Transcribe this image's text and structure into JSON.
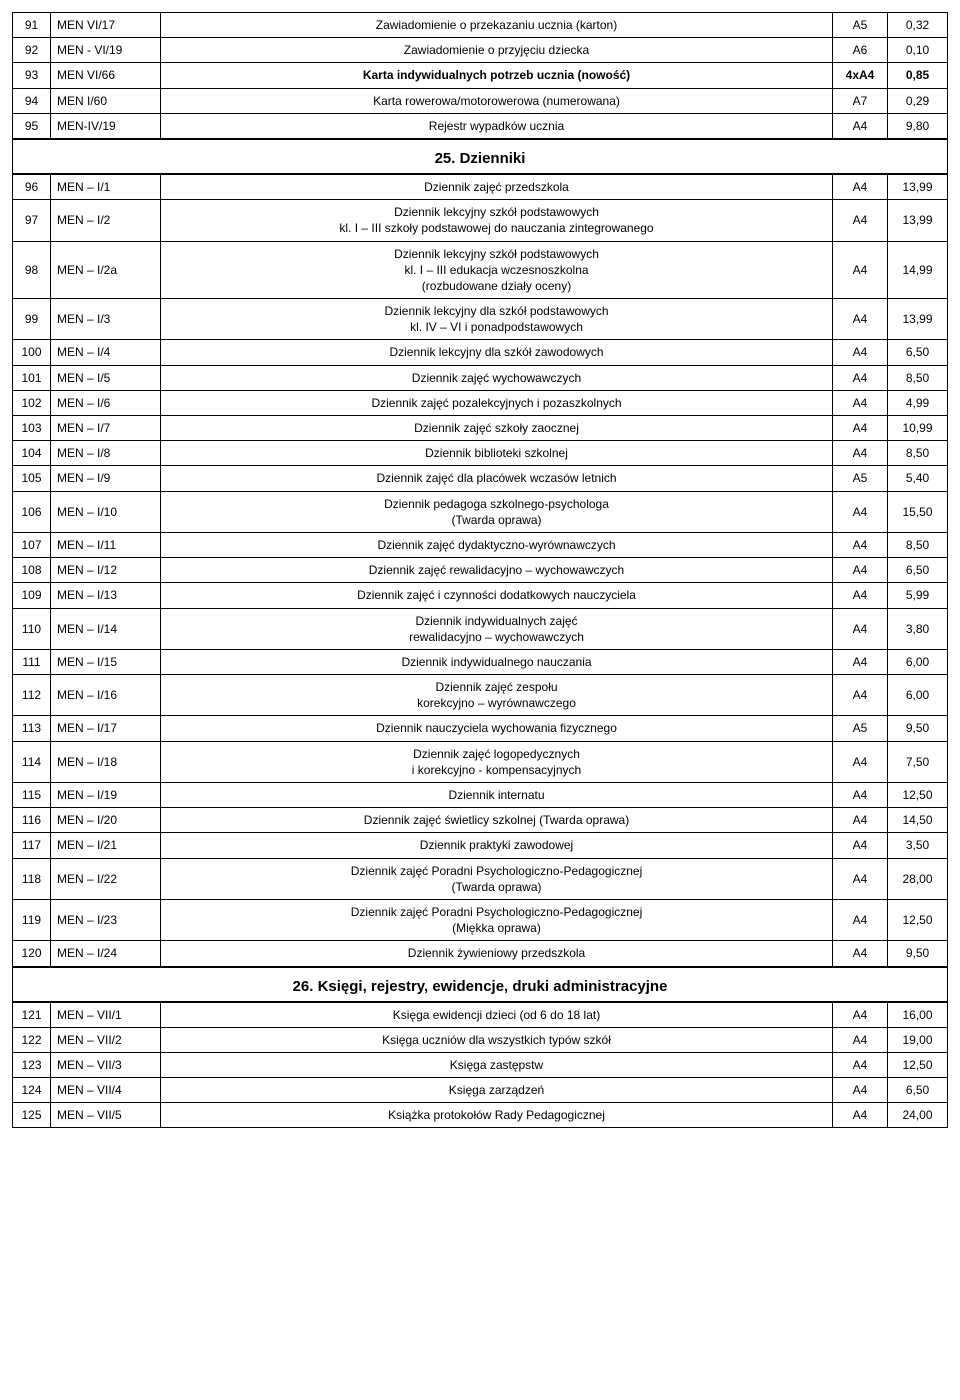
{
  "sections": [
    {
      "heading": null,
      "rows": [
        {
          "no": "91",
          "code": "MEN VI/17",
          "desc": "Zawiadomienie o przekazaniu ucznia (karton)",
          "fmt": "A5",
          "price": "0,32",
          "bold": false
        },
        {
          "no": "92",
          "code": "MEN -  VI/19",
          "desc": "Zawiadomienie o przyjęciu dziecka",
          "fmt": "A6",
          "price": "0,10",
          "bold": false
        },
        {
          "no": "93",
          "code": "MEN VI/66",
          "desc": "Karta indywidualnych potrzeb ucznia (nowość)",
          "fmt": "4xA4",
          "price": "0,85",
          "bold": true
        },
        {
          "no": "94",
          "code": "MEN I/60",
          "desc": "Karta rowerowa/motorowerowa (numerowana)",
          "fmt": "A7",
          "price": "0,29",
          "bold": false
        },
        {
          "no": "95",
          "code": "MEN-IV/19",
          "desc": "Rejestr wypadków ucznia",
          "fmt": "A4",
          "price": "9,80",
          "bold": false
        }
      ]
    },
    {
      "heading": "25. Dzienniki",
      "rows": [
        {
          "no": "96",
          "code": "MEN – I/1",
          "desc": "Dziennik zajęć przedszkola",
          "fmt": "A4",
          "price": "13,99",
          "bold": false
        },
        {
          "no": "97",
          "code": "MEN – I/2",
          "desc": "Dziennik lekcyjny szkół podstawowych\nkl. I – III szkoły podstawowej do nauczania zintegrowanego",
          "fmt": "A4",
          "price": "13,99",
          "bold": false
        },
        {
          "no": "98",
          "code": "MEN – I/2a",
          "desc": "Dziennik lekcyjny szkół podstawowych\nkl. I – III edukacja wczesnoszkolna\n(rozbudowane działy oceny)",
          "fmt": "A4",
          "price": "14,99",
          "bold": false
        },
        {
          "no": "99",
          "code": "MEN – I/3",
          "desc": "Dziennik lekcyjny dla szkół podstawowych\nkl. IV – VI i ponadpodstawowych",
          "fmt": "A4",
          "price": "13,99",
          "bold": false
        },
        {
          "no": "100",
          "code": "MEN – I/4",
          "desc": "Dziennik lekcyjny dla szkół zawodowych",
          "fmt": "A4",
          "price": "6,50",
          "bold": false
        },
        {
          "no": "101",
          "code": "MEN – I/5",
          "desc": "Dziennik zajęć wychowawczych",
          "fmt": "A4",
          "price": "8,50",
          "bold": false
        },
        {
          "no": "102",
          "code": "MEN – I/6",
          "desc": "Dziennik zajęć pozalekcyjnych i pozaszkolnych",
          "fmt": "A4",
          "price": "4,99",
          "bold": false
        },
        {
          "no": "103",
          "code": "MEN – I/7",
          "desc": "Dziennik zajęć szkoły zaocznej",
          "fmt": "A4",
          "price": "10,99",
          "bold": false
        },
        {
          "no": "104",
          "code": "MEN – I/8",
          "desc": "Dziennik biblioteki szkolnej",
          "fmt": "A4",
          "price": "8,50",
          "bold": false
        },
        {
          "no": "105",
          "code": "MEN – I/9",
          "desc": "Dziennik zajęć dla placówek wczasów letnich",
          "fmt": "A5",
          "price": "5,40",
          "bold": false
        },
        {
          "no": "106",
          "code": "MEN – I/10",
          "desc": "Dziennik pedagoga szkolnego-psychologa\n(Twarda oprawa)",
          "fmt": "A4",
          "price": "15,50",
          "bold": false
        },
        {
          "no": "107",
          "code": "MEN – I/11",
          "desc": "Dziennik zajęć dydaktyczno-wyrównawczych",
          "fmt": "A4",
          "price": "8,50",
          "bold": false
        },
        {
          "no": "108",
          "code": "MEN – I/12",
          "desc": "Dziennik zajęć rewalidacyjno – wychowawczych",
          "fmt": "A4",
          "price": "6,50",
          "bold": false
        },
        {
          "no": "109",
          "code": "MEN – I/13",
          "desc": "Dziennik zajęć i czynności dodatkowych nauczyciela",
          "fmt": "A4",
          "price": "5,99",
          "bold": false
        },
        {
          "no": "110",
          "code": "MEN – I/14",
          "desc": "Dziennik indywidualnych zajęć\nrewalidacyjno – wychowawczych",
          "fmt": "A4",
          "price": "3,80",
          "bold": false
        },
        {
          "no": "111",
          "code": "MEN – I/15",
          "desc": "Dziennik indywidualnego nauczania",
          "fmt": "A4",
          "price": "6,00",
          "bold": false
        },
        {
          "no": "112",
          "code": "MEN – I/16",
          "desc": "Dziennik zajęć zespołu\nkorekcyjno – wyrównawczego",
          "fmt": "A4",
          "price": "6,00",
          "bold": false
        },
        {
          "no": "113",
          "code": "MEN – I/17",
          "desc": "Dziennik nauczyciela wychowania fizycznego",
          "fmt": "A5",
          "price": "9,50",
          "bold": false
        },
        {
          "no": "114",
          "code": "MEN – I/18",
          "desc": "Dziennik zajęć logopedycznych\ni korekcyjno - kompensacyjnych",
          "fmt": "A4",
          "price": "7,50",
          "bold": false
        },
        {
          "no": "115",
          "code": "MEN – I/19",
          "desc": "Dziennik internatu",
          "fmt": "A4",
          "price": "12,50",
          "bold": false
        },
        {
          "no": "116",
          "code": "MEN – I/20",
          "desc": "Dziennik zajęć świetlicy szkolnej (Twarda oprawa)",
          "fmt": "A4",
          "price": "14,50",
          "bold": false
        },
        {
          "no": "117",
          "code": "MEN – I/21",
          "desc": "Dziennik praktyki zawodowej",
          "fmt": "A4",
          "price": "3,50",
          "bold": false
        },
        {
          "no": "118",
          "code": "MEN – I/22",
          "desc": "Dziennik zajęć Poradni Psychologiczno-Pedagogicznej\n(Twarda oprawa)",
          "fmt": "A4",
          "price": "28,00",
          "bold": false
        },
        {
          "no": "119",
          "code": "MEN – I/23",
          "desc": "Dziennik zajęć Poradni Psychologiczno-Pedagogicznej\n(Miękka oprawa)",
          "fmt": "A4",
          "price": "12,50",
          "bold": false
        },
        {
          "no": "120",
          "code": "MEN – I/24",
          "desc": "Dziennik żywieniowy przedszkola",
          "fmt": "A4",
          "price": "9,50",
          "bold": false
        }
      ]
    },
    {
      "heading": "26. Księgi, rejestry, ewidencje, druki administracyjne",
      "rows": [
        {
          "no": "121",
          "code": "MEN – VII/1",
          "desc": "Księga ewidencji dzieci (od 6 do 18 lat)",
          "fmt": "A4",
          "price": "16,00",
          "bold": false
        },
        {
          "no": "122",
          "code": "MEN – VII/2",
          "desc": "Księga uczniów dla wszystkich typów szkół",
          "fmt": "A4",
          "price": "19,00",
          "bold": false
        },
        {
          "no": "123",
          "code": "MEN – VII/3",
          "desc": "Księga zastępstw",
          "fmt": "A4",
          "price": "12,50",
          "bold": false
        },
        {
          "no": "124",
          "code": "MEN – VII/4",
          "desc": "Księga zarządzeń",
          "fmt": "A4",
          "price": "6,50",
          "bold": false
        },
        {
          "no": "125",
          "code": "MEN – VII/5",
          "desc": "Książka protokołów Rady Pedagogicznej",
          "fmt": "A4",
          "price": "24,00",
          "bold": false
        }
      ]
    }
  ]
}
